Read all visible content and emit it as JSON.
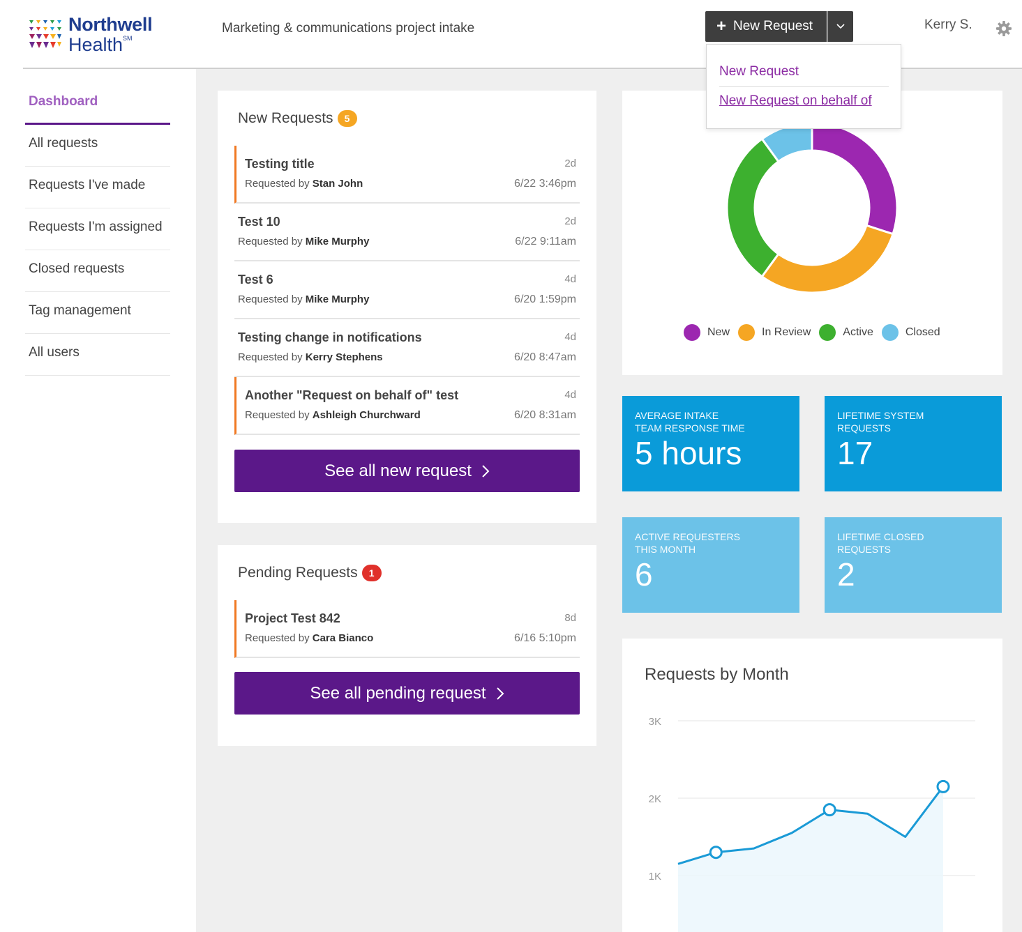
{
  "header": {
    "logo_line1": "Northwell",
    "logo_line2": "Health",
    "logo_mark_suffix": "SM",
    "app_title": "Marketing & communications project intake",
    "new_request_label": "New Request",
    "user_name": "Kerry S."
  },
  "dropdown": {
    "items": [
      "New Request",
      "New Request on behalf of"
    ]
  },
  "sidebar": {
    "active": "Dashboard",
    "items": [
      "All requests",
      "Requests I've made",
      "Requests I'm assigned",
      "Closed requests",
      "Tag management",
      "All users"
    ]
  },
  "new_requests": {
    "title": "New Requests",
    "count": "5",
    "rows": [
      {
        "title": "Testing title",
        "by_prefix": "Requested by",
        "by": "Stan John",
        "age": "2d",
        "date": "6/22 3:46pm",
        "flag": true
      },
      {
        "title": "Test 10",
        "by_prefix": "Requested by",
        "by": "Mike Murphy",
        "age": "2d",
        "date": "6/22 9:11am",
        "flag": false
      },
      {
        "title": "Test 6",
        "by_prefix": "Requested by",
        "by": "Mike Murphy",
        "age": "4d",
        "date": "6/20 1:59pm",
        "flag": false
      },
      {
        "title": "Testing change in notifications",
        "by_prefix": "Requested by",
        "by": "Kerry Stephens",
        "age": "4d",
        "date": "6/20 8:47am",
        "flag": false
      },
      {
        "title": "Another \"Request on behalf of\" test",
        "by_prefix": "Requested by",
        "by": "Ashleigh Churchward",
        "age": "4d",
        "date": "6/20 8:31am",
        "flag": true
      }
    ],
    "see_all": "See all new request"
  },
  "pending_requests": {
    "title": "Pending Requests",
    "count": "1",
    "rows": [
      {
        "title": "Project Test 842",
        "by_prefix": "Requested by",
        "by": "Cara Bianco",
        "age": "8d",
        "date": "6/16 5:10pm",
        "flag": true
      }
    ],
    "see_all": "See all pending request"
  },
  "stats": [
    {
      "label_line1": "Average intake",
      "label_line2": "team response time",
      "value": "5 hours",
      "style": "dark"
    },
    {
      "label_line1": "Lifetime system",
      "label_line2": "requests",
      "value": "17",
      "style": "dark"
    },
    {
      "label_line1": "Active requesters",
      "label_line2": "this month",
      "value": "6",
      "style": "light"
    },
    {
      "label_line1": "Lifetime closed",
      "label_line2": "requests",
      "value": "2",
      "style": "light"
    }
  ],
  "colors": {
    "purple": "#5b1889",
    "new": "#9c27b0",
    "in_review": "#f5a623",
    "active": "#3db02f",
    "closed": "#6cc2e8",
    "stat_dark": "#0a9bd9",
    "stat_light": "#6cc2e8"
  },
  "chart_data": [
    {
      "type": "pie",
      "donut": true,
      "legend": [
        "New",
        "In Review",
        "Active",
        "Closed"
      ],
      "values": [
        30,
        30,
        30,
        10
      ],
      "legend_position": "bottom"
    },
    {
      "type": "line",
      "title": "Requests by Month",
      "y_ticks": [
        "3K",
        "2K",
        "1K"
      ],
      "ylim": [
        0,
        3000
      ],
      "values": [
        1150,
        1300,
        1350,
        1550,
        1850,
        1800,
        1500,
        2150
      ],
      "marked_points": [
        1,
        4,
        7
      ],
      "grid": true
    }
  ]
}
